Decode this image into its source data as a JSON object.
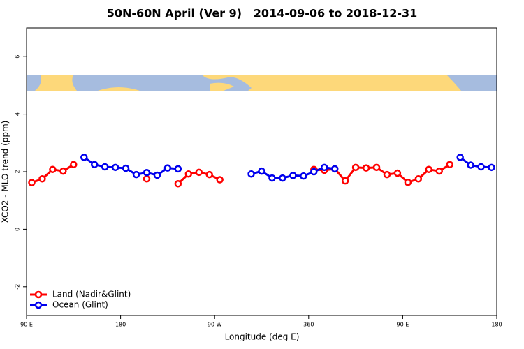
{
  "chart_data": {
    "type": "line",
    "title": "50N-60N April (Ver 9)   2014-09-06 to 2018-12-31",
    "x_label": "Longitude (deg E)",
    "y_label": "XCO2 - MLO trend (ppm)",
    "x": [
      95,
      105,
      115,
      125,
      135,
      145,
      155,
      165,
      175,
      185,
      195,
      205,
      215,
      225,
      235,
      245,
      255,
      265,
      275,
      285,
      295,
      305,
      315,
      325,
      335,
      345,
      355,
      365,
      375,
      385,
      395,
      405,
      415,
      425,
      435,
      445,
      455,
      465,
      475,
      485,
      495,
      505,
      515,
      525,
      535
    ],
    "series": [
      {
        "name": "Land (Nadir&Glint)",
        "color": "#ff0000",
        "values": [
          1.62,
          1.75,
          2.08,
          2.02,
          2.25,
          null,
          null,
          null,
          null,
          null,
          null,
          1.75,
          null,
          null,
          1.58,
          1.92,
          1.98,
          1.9,
          1.72,
          null,
          null,
          null,
          null,
          null,
          null,
          null,
          null,
          2.08,
          2.05,
          2.1,
          1.68,
          2.15,
          2.13,
          2.15,
          1.9,
          1.95,
          1.63,
          1.75,
          2.08,
          2.02,
          2.25,
          null,
          null,
          null,
          null
        ]
      },
      {
        "name": "Ocean (Glint)",
        "color": "#0000ee",
        "values": [
          null,
          null,
          null,
          null,
          null,
          2.5,
          2.25,
          2.17,
          2.15,
          2.12,
          1.9,
          1.97,
          1.88,
          2.13,
          2.1,
          null,
          null,
          null,
          null,
          null,
          null,
          1.92,
          2.02,
          1.78,
          1.78,
          1.87,
          1.85,
          2.0,
          2.15,
          2.1,
          null,
          null,
          null,
          null,
          null,
          null,
          null,
          null,
          null,
          null,
          null,
          2.5,
          2.23,
          2.17,
          2.15
        ]
      }
    ],
    "xlim": [
      90,
      540
    ],
    "xticks": [
      {
        "value": 90,
        "label": "90 E"
      },
      180,
      {
        "value": 270,
        "label": "90 W"
      },
      360,
      {
        "value": 450,
        "label": "90 E"
      },
      {
        "value": 540,
        "label": "180"
      }
    ],
    "ylim": [
      -3,
      7
    ],
    "yticks": [
      -2,
      0,
      2,
      4,
      6
    ],
    "legend": "bottom-left"
  }
}
